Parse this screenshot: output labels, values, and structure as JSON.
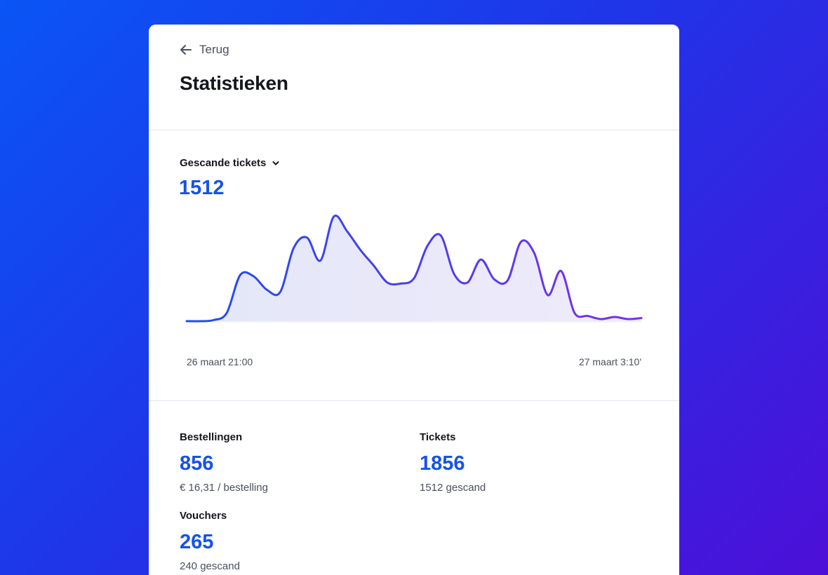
{
  "colors": {
    "accent": "#1553e8",
    "line_start": "#1d4ef0",
    "line_end": "#7b2fe6",
    "text": "#14161c",
    "muted": "#4a4f5e"
  },
  "nav": {
    "back_label": "Terug",
    "back_icon": "arrow-left-icon"
  },
  "page": {
    "title": "Statistieken"
  },
  "chart": {
    "metric_label": "Gescande tickets",
    "dropdown_icon": "chevron-down-icon",
    "total": "1512",
    "x_start_label": "26 maart 21:00",
    "x_end_label": "27 maart 3:10'"
  },
  "chart_data": {
    "type": "area",
    "title": "",
    "xlabel": "",
    "ylabel": "",
    "x_range": [
      "26 maart 21:00",
      "27 maart 3:10'"
    ],
    "values": [
      0,
      0,
      1,
      8,
      44,
      43,
      30,
      28,
      70,
      80,
      58,
      100,
      86,
      68,
      53,
      37,
      36,
      41,
      72,
      82,
      45,
      37,
      59,
      40,
      39,
      76,
      65,
      25,
      48,
      8,
      5,
      2,
      4,
      2,
      3
    ],
    "grid": false,
    "legend": "none"
  },
  "stats": {
    "orders": {
      "label": "Bestellingen",
      "value": "856",
      "sub": "€ 16,31 / bestelling"
    },
    "tickets": {
      "label": "Tickets",
      "value": "1856",
      "sub": "1512 gescand"
    },
    "vouchers": {
      "label": "Vouchers",
      "value": "265",
      "sub": "240 gescand"
    }
  }
}
